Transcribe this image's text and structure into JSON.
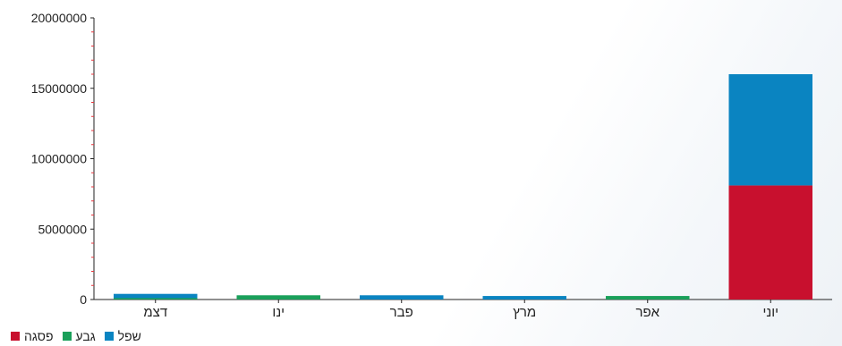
{
  "chart_data": {
    "type": "bar",
    "stacked": true,
    "categories": [
      "דצמ",
      "ינו",
      "פבר",
      "מרץ",
      "אפר",
      "יוני"
    ],
    "series": [
      {
        "name": "פסגה",
        "color": "#c8102e",
        "values": [
          0,
          0,
          0,
          0,
          0,
          8100000
        ]
      },
      {
        "name": "גבע",
        "color": "#1aa05a",
        "values": [
          100000,
          300000,
          0,
          0,
          250000,
          0
        ]
      },
      {
        "name": "שפל",
        "color": "#0a84c1",
        "values": [
          300000,
          0,
          300000,
          250000,
          0,
          7900000
        ]
      }
    ],
    "yticks": [
      "0",
      "5000000",
      "10000000",
      "15000000",
      "20000000"
    ],
    "ylim": [
      0,
      20000000
    ],
    "legend_position": "bottom-left",
    "legend_order": [
      "פסגה",
      "גבע",
      "שפל"
    ],
    "grid": false
  }
}
